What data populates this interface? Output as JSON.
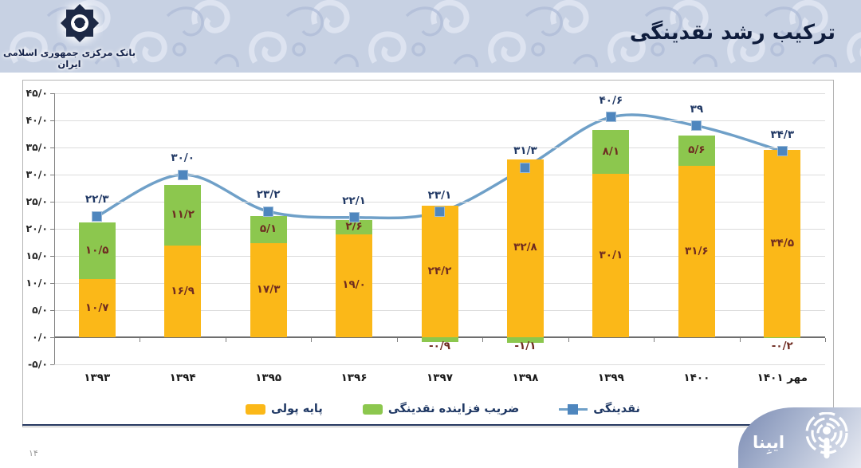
{
  "header": {
    "bank_name": "بانک مرکزی جمهوری اسلامی ایران",
    "title": "ترکیب رشد نقدینگی"
  },
  "footer": {
    "page_number": "۱۴",
    "watermark": "ایبِنا"
  },
  "colors": {
    "header_bg": "#c7d1e3",
    "bar_base": "#FBB818",
    "bar_multiplier": "#8CC74E",
    "line": "#6FA0C8",
    "marker": "#4E86BE",
    "marker_border": "#9dbbd8",
    "bar_label": "#6E2B21",
    "line_label": "#203864"
  },
  "chart_data": {
    "type": "bar",
    "stacked": true,
    "grid": true,
    "legend_position": "bottom",
    "title": "ترکیب رشد نقدینگی",
    "categories": [
      "۱۳۹۳",
      "۱۳۹۴",
      "۱۳۹۵",
      "۱۳۹۶",
      "۱۳۹۷",
      "۱۳۹۸",
      "۱۳۹۹",
      "۱۴۰۰",
      "مهر ۱۴۰۱"
    ],
    "series": [
      {
        "name": "پایه پولی",
        "chart": "bar",
        "color": "#FBB818",
        "values": [
          10.7,
          16.9,
          17.3,
          19.0,
          24.2,
          32.8,
          30.1,
          31.6,
          34.5
        ],
        "labels": [
          "۱۰/۷",
          "۱۶/۹",
          "۱۷/۳",
          "۱۹/۰",
          "۲۴/۲",
          "۳۲/۸",
          "۳۰/۱",
          "۳۱/۶",
          "۳۴/۵"
        ]
      },
      {
        "name": "ضریب فزاینده نقدینگی",
        "chart": "bar",
        "color": "#8CC74E",
        "values": [
          10.5,
          11.2,
          5.1,
          2.6,
          -0.9,
          -1.1,
          8.1,
          5.6,
          -0.2
        ],
        "labels": [
          "۱۰/۵",
          "۱۱/۲",
          "۵/۱",
          "۲/۶",
          "-۰/۹",
          "-۱/۱",
          "۸/۱",
          "۵/۶",
          "-۰/۲"
        ]
      },
      {
        "name": "نقدینگی",
        "chart": "line",
        "color": "#6FA0C8",
        "values": [
          22.3,
          30.0,
          23.2,
          22.1,
          23.1,
          31.3,
          40.6,
          39,
          34.3
        ],
        "labels": [
          "۲۲/۳",
          "۳۰/۰",
          "۲۳/۲",
          "۲۲/۱",
          "۲۳/۱",
          "۳۱/۳",
          "۴۰/۶",
          "۳۹",
          "۳۴/۳"
        ]
      }
    ],
    "y_axis": {
      "min": -5,
      "max": 45,
      "step": 5,
      "values": [
        45,
        40,
        35,
        30,
        25,
        20,
        15,
        10,
        5,
        0,
        -5
      ],
      "tick_labels": [
        "۴۵/۰",
        "۴۰/۰",
        "۳۵/۰",
        "۳۰/۰",
        "۲۵/۰",
        "۲۰/۰",
        "۱۵/۰",
        "۱۰/۰",
        "۵/۰",
        "۰/۰",
        "-۵/۰"
      ]
    }
  }
}
